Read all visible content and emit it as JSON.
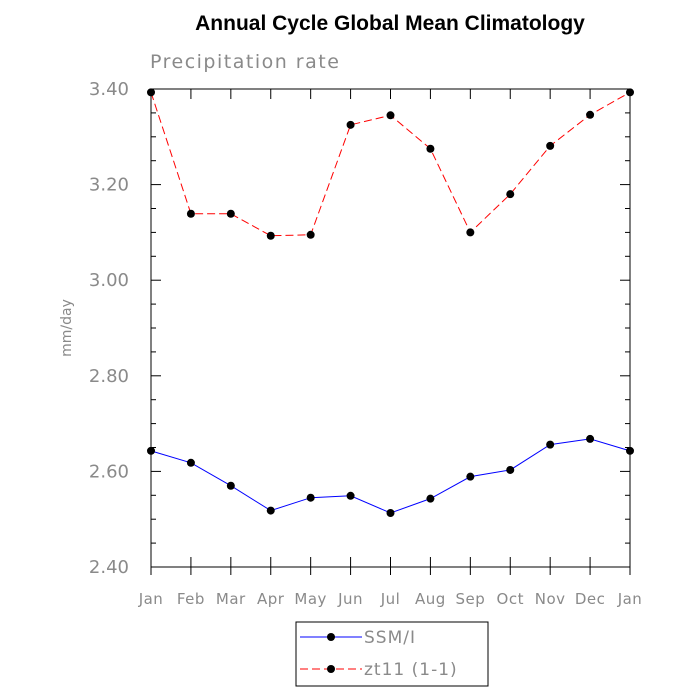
{
  "chart_data": {
    "type": "line",
    "title": "Annual Cycle Global Mean Climatology",
    "subtitle": "Precipitation rate",
    "xlabel": "",
    "ylabel": "mm/day",
    "categories": [
      "Jan",
      "Feb",
      "Mar",
      "Apr",
      "May",
      "Jun",
      "Jul",
      "Aug",
      "Sep",
      "Oct",
      "Nov",
      "Dec",
      "Jan"
    ],
    "ylim": [
      2.4,
      3.4
    ],
    "yticks": [
      "2.40",
      "2.60",
      "2.80",
      "3.00",
      "3.20",
      "3.40"
    ],
    "series": [
      {
        "name": "SSM/I",
        "color": "#0000ff",
        "dash": "solid",
        "values": [
          2.643,
          2.618,
          2.57,
          2.518,
          2.545,
          2.549,
          2.513,
          2.543,
          2.589,
          2.603,
          2.656,
          2.668,
          2.643
        ]
      },
      {
        "name": "zt11 (1-1)",
        "color": "#ff0000",
        "dash": "dashed",
        "values": [
          3.393,
          3.139,
          3.139,
          3.093,
          3.095,
          3.325,
          3.345,
          3.275,
          3.1,
          3.18,
          3.281,
          3.346,
          3.393
        ]
      }
    ],
    "legend": {
      "position": "bottom",
      "entries": [
        "SSM/I",
        "zt11 (1-1)"
      ]
    },
    "grid": false
  }
}
